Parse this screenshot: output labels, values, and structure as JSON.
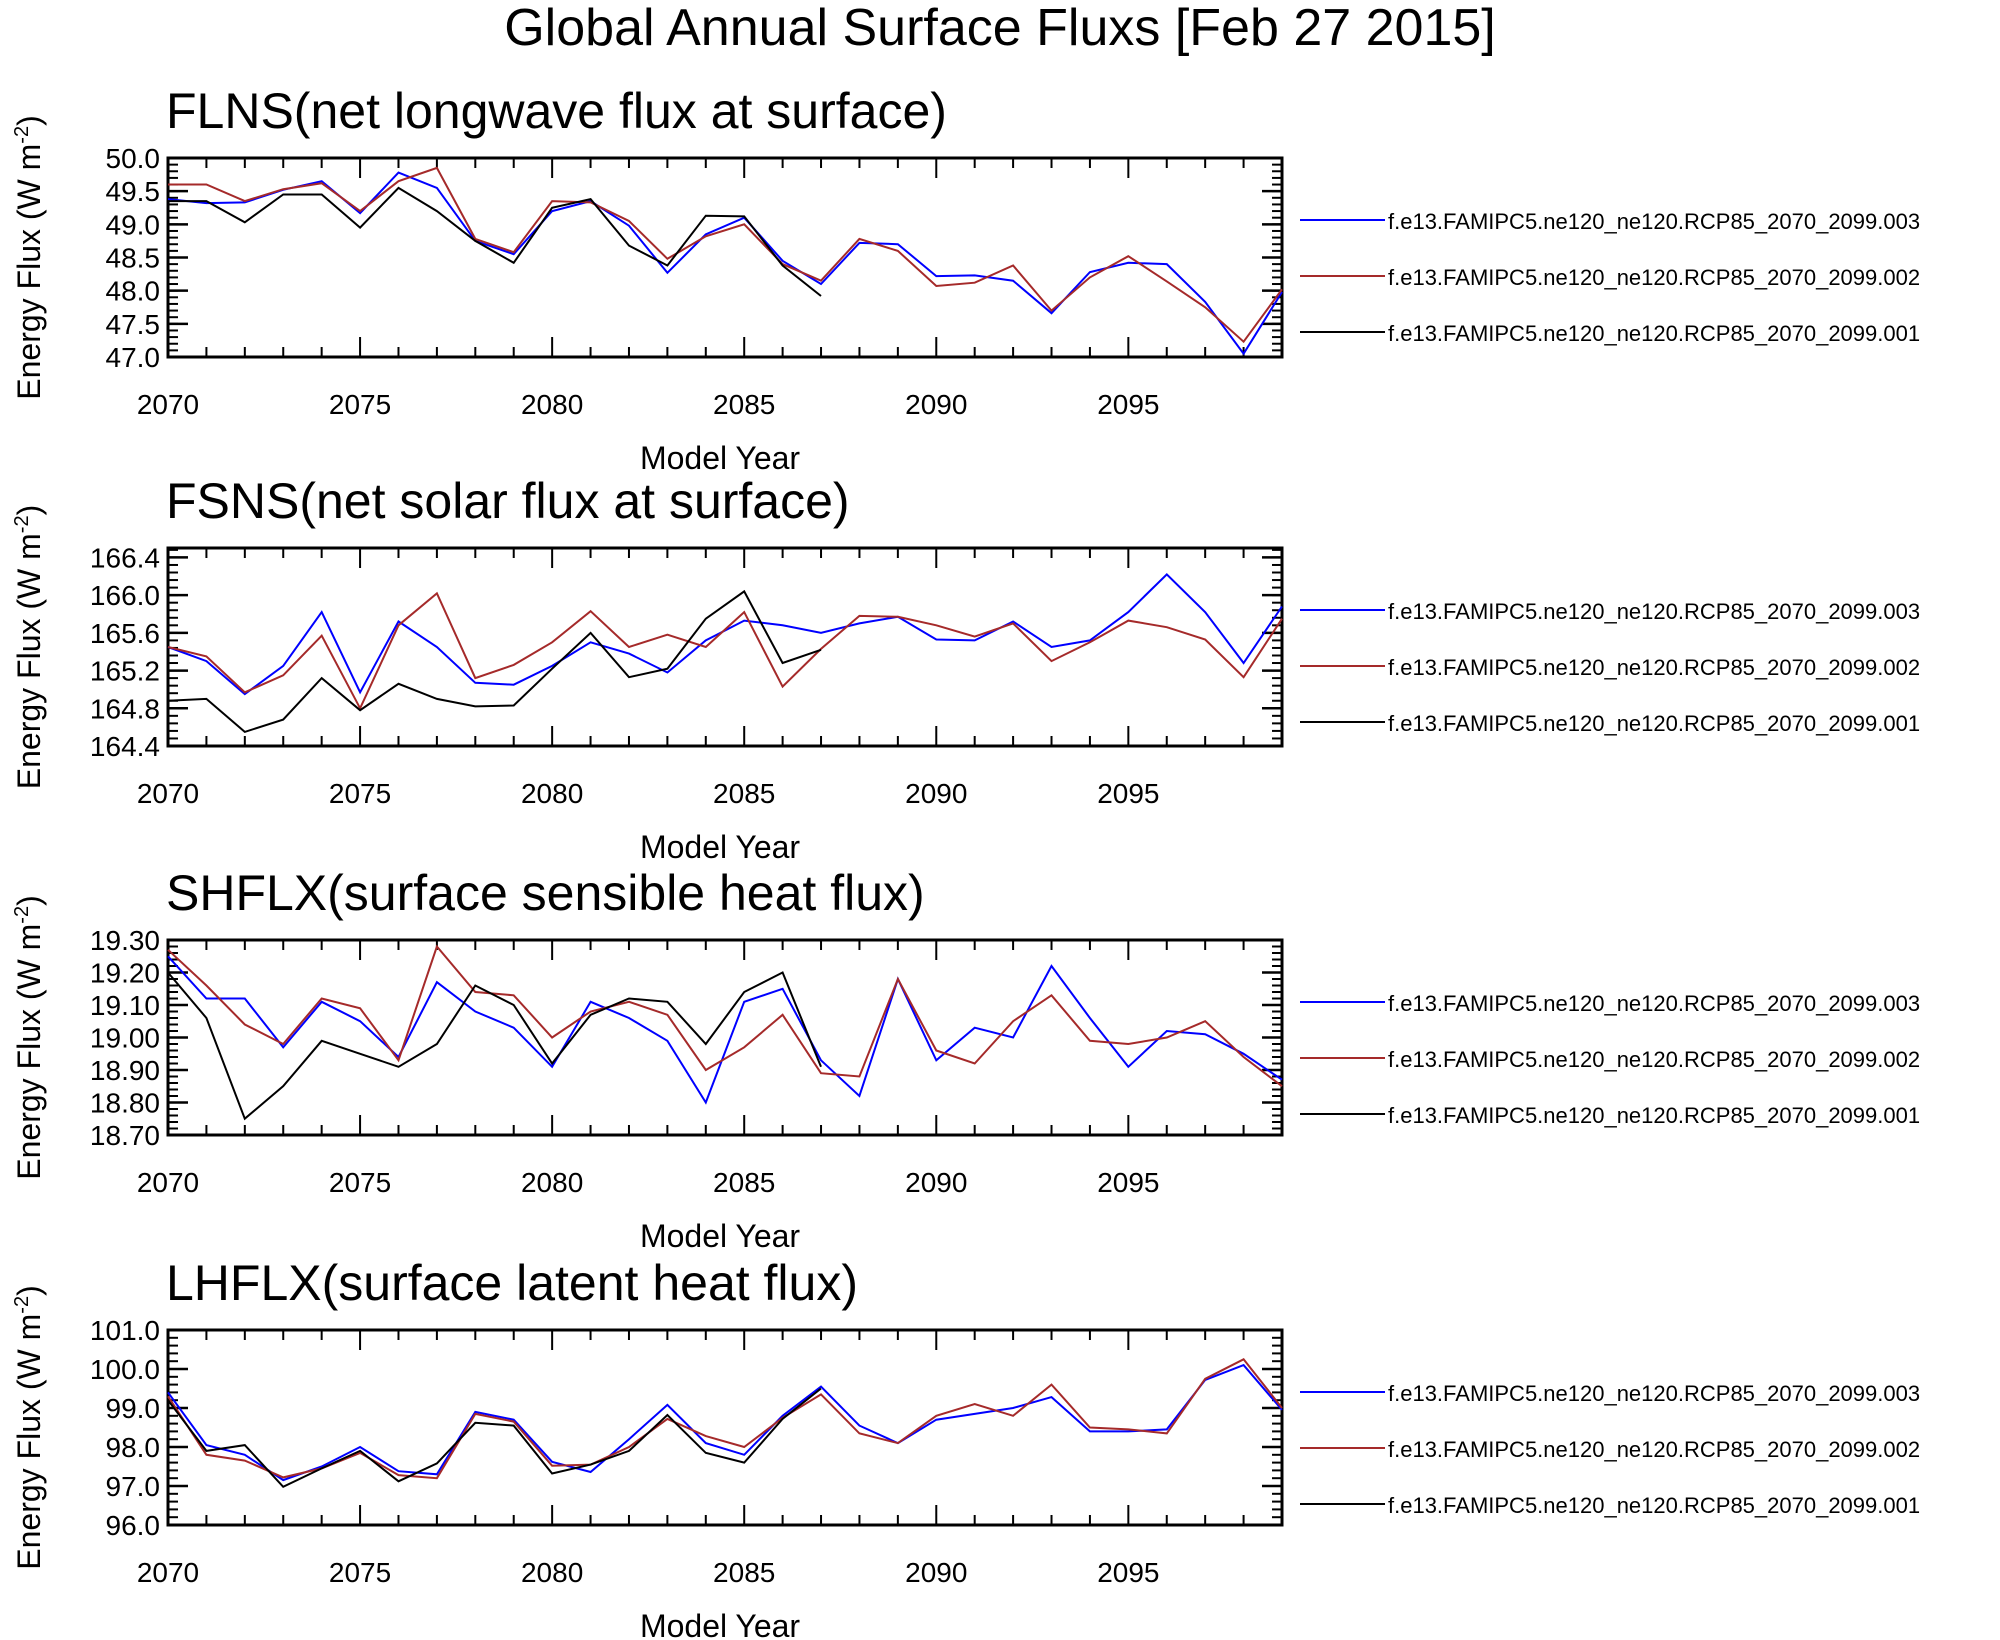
{
  "page": {
    "title": "Global Annual Surface Fluxs [Feb 27 2015]"
  },
  "chart_data": [
    {
      "type": "line",
      "title": "FLNS(net longwave flux at surface)",
      "xlabel": "Model Year",
      "ylabel": "Energy Flux (W m",
      "ylabel_sup": "-2",
      "ylabel_close": ")",
      "xlim": [
        2070,
        2099
      ],
      "ylim": [
        47.0,
        50.0
      ],
      "xticks": [
        2070,
        2075,
        2080,
        2085,
        2090,
        2095
      ],
      "yticks": [
        "47.0",
        "47.5",
        "48.0",
        "48.5",
        "49.0",
        "49.5",
        "50.0"
      ],
      "series": [
        {
          "name": "f.e13.FAMIPC5.ne120_ne120.RCP85_2070_2099.003",
          "color": "#0000ff",
          "x": [
            2070,
            2071,
            2072,
            2073,
            2074,
            2075,
            2076,
            2077,
            2078,
            2079,
            2080,
            2081,
            2082,
            2083,
            2084,
            2085,
            2086,
            2087,
            2088,
            2089,
            2090,
            2091,
            2092,
            2093,
            2094,
            2095,
            2096,
            2097,
            2098,
            2099
          ],
          "y": [
            49.38,
            49.32,
            49.33,
            49.52,
            49.65,
            49.17,
            49.78,
            49.55,
            48.75,
            48.55,
            49.2,
            49.35,
            48.98,
            48.27,
            48.85,
            49.1,
            48.45,
            48.1,
            48.72,
            48.7,
            48.22,
            48.23,
            48.15,
            47.66,
            48.28,
            48.42,
            48.4,
            47.83,
            47.05,
            47.98
          ]
        },
        {
          "name": "f.e13.FAMIPC5.ne120_ne120.RCP85_2070_2099.002",
          "color": "#a52a2a",
          "x": [
            2070,
            2071,
            2072,
            2073,
            2074,
            2075,
            2076,
            2077,
            2078,
            2079,
            2080,
            2081,
            2082,
            2083,
            2084,
            2085,
            2086,
            2087,
            2088,
            2089,
            2090,
            2091,
            2092,
            2093,
            2094,
            2095,
            2096,
            2097,
            2098,
            2099
          ],
          "y": [
            49.6,
            49.6,
            49.35,
            49.53,
            49.62,
            49.2,
            49.65,
            49.85,
            48.78,
            48.58,
            49.35,
            49.33,
            49.05,
            48.48,
            48.82,
            49.0,
            48.4,
            48.15,
            48.78,
            48.6,
            48.07,
            48.12,
            48.38,
            47.7,
            48.2,
            48.52,
            48.14,
            47.75,
            47.23,
            48.02
          ]
        },
        {
          "name": "f.e13.FAMIPC5.ne120_ne120.RCP85_2070_2099.001",
          "color": "#000000",
          "x": [
            2070,
            2071,
            2072,
            2073,
            2074,
            2075,
            2076,
            2077,
            2078,
            2079,
            2080,
            2081,
            2082,
            2083,
            2084,
            2085,
            2086,
            2087
          ],
          "y": [
            49.35,
            49.35,
            49.03,
            49.45,
            49.45,
            48.95,
            49.55,
            49.2,
            48.75,
            48.42,
            49.25,
            49.38,
            48.68,
            48.38,
            49.13,
            49.12,
            48.38,
            47.92
          ]
        }
      ]
    },
    {
      "type": "line",
      "title": "FSNS(net solar flux at surface)",
      "xlabel": "Model Year",
      "ylabel": "Energy Flux (W m",
      "ylabel_sup": "-2",
      "ylabel_close": ")",
      "xlim": [
        2070,
        2099
      ],
      "ylim": [
        164.4,
        166.5
      ],
      "xticks": [
        2070,
        2075,
        2080,
        2085,
        2090,
        2095
      ],
      "yticks": [
        "164.4",
        "164.8",
        "165.2",
        "165.6",
        "166.0",
        "166.4"
      ],
      "series": [
        {
          "name": "f.e13.FAMIPC5.ne120_ne120.RCP85_2070_2099.003",
          "color": "#0000ff",
          "x": [
            2070,
            2071,
            2072,
            2073,
            2074,
            2075,
            2076,
            2077,
            2078,
            2079,
            2080,
            2081,
            2082,
            2083,
            2084,
            2085,
            2086,
            2087,
            2088,
            2089,
            2090,
            2091,
            2092,
            2093,
            2094,
            2095,
            2096,
            2097,
            2098,
            2099
          ],
          "y": [
            165.45,
            165.3,
            164.95,
            165.25,
            165.82,
            164.97,
            165.72,
            165.45,
            165.07,
            165.05,
            165.25,
            165.5,
            165.38,
            165.18,
            165.52,
            165.73,
            165.68,
            165.6,
            165.7,
            165.77,
            165.53,
            165.52,
            165.72,
            165.45,
            165.52,
            165.82,
            166.22,
            165.82,
            165.28,
            165.88
          ]
        },
        {
          "name": "f.e13.FAMIPC5.ne120_ne120.RCP85_2070_2099.002",
          "color": "#a52a2a",
          "x": [
            2070,
            2071,
            2072,
            2073,
            2074,
            2075,
            2076,
            2077,
            2078,
            2079,
            2080,
            2081,
            2082,
            2083,
            2084,
            2085,
            2086,
            2087,
            2088,
            2089,
            2090,
            2091,
            2092,
            2093,
            2094,
            2095,
            2096,
            2097,
            2098,
            2099
          ],
          "y": [
            165.45,
            165.35,
            164.97,
            165.15,
            165.57,
            164.8,
            165.68,
            166.02,
            165.12,
            165.26,
            165.5,
            165.83,
            165.45,
            165.58,
            165.45,
            165.82,
            165.03,
            165.43,
            165.78,
            165.77,
            165.68,
            165.56,
            165.7,
            165.3,
            165.5,
            165.73,
            165.66,
            165.53,
            165.13,
            165.75
          ]
        },
        {
          "name": "f.e13.FAMIPC5.ne120_ne120.RCP85_2070_2099.001",
          "color": "#000000",
          "x": [
            2070,
            2071,
            2072,
            2073,
            2074,
            2075,
            2076,
            2077,
            2078,
            2079,
            2080,
            2081,
            2082,
            2083,
            2084,
            2085,
            2086,
            2087
          ],
          "y": [
            164.88,
            164.9,
            164.55,
            164.68,
            165.12,
            164.78,
            165.06,
            164.9,
            164.82,
            164.83,
            165.22,
            165.6,
            165.13,
            165.22,
            165.75,
            166.04,
            165.28,
            165.42
          ]
        }
      ]
    },
    {
      "type": "line",
      "title": "SHFLX(surface sensible heat flux)",
      "xlabel": "Model Year",
      "ylabel": "Energy Flux (W m",
      "ylabel_sup": "-2",
      "ylabel_close": ")",
      "xlim": [
        2070,
        2099
      ],
      "ylim": [
        18.7,
        19.3
      ],
      "xticks": [
        2070,
        2075,
        2080,
        2085,
        2090,
        2095
      ],
      "yticks": [
        "18.70",
        "18.80",
        "18.90",
        "19.00",
        "19.10",
        "19.20",
        "19.30"
      ],
      "series": [
        {
          "name": "f.e13.FAMIPC5.ne120_ne120.RCP85_2070_2099.003",
          "color": "#0000ff",
          "x": [
            2070,
            2071,
            2072,
            2073,
            2074,
            2075,
            2076,
            2077,
            2078,
            2079,
            2080,
            2081,
            2082,
            2083,
            2084,
            2085,
            2086,
            2087,
            2088,
            2089,
            2090,
            2091,
            2092,
            2093,
            2094,
            2095,
            2096,
            2097,
            2098,
            2099
          ],
          "y": [
            19.25,
            19.12,
            19.12,
            18.97,
            19.11,
            19.05,
            18.94,
            19.17,
            19.08,
            19.03,
            18.91,
            19.11,
            19.06,
            18.99,
            18.8,
            19.11,
            19.15,
            18.93,
            18.82,
            19.18,
            18.93,
            19.03,
            19.0,
            19.22,
            19.06,
            18.91,
            19.02,
            19.01,
            18.95,
            18.87
          ]
        },
        {
          "name": "f.e13.FAMIPC5.ne120_ne120.RCP85_2070_2099.002",
          "color": "#a52a2a",
          "x": [
            2070,
            2071,
            2072,
            2073,
            2074,
            2075,
            2076,
            2077,
            2078,
            2079,
            2080,
            2081,
            2082,
            2083,
            2084,
            2085,
            2086,
            2087,
            2088,
            2089,
            2090,
            2091,
            2092,
            2093,
            2094,
            2095,
            2096,
            2097,
            2098,
            2099
          ],
          "y": [
            19.27,
            19.16,
            19.04,
            18.98,
            19.12,
            19.09,
            18.93,
            19.28,
            19.14,
            19.13,
            19.0,
            19.08,
            19.11,
            19.07,
            18.9,
            18.97,
            19.07,
            18.89,
            18.88,
            19.18,
            18.96,
            18.92,
            19.05,
            19.13,
            18.99,
            18.98,
            19.0,
            19.05,
            18.94,
            18.85
          ]
        },
        {
          "name": "f.e13.FAMIPC5.ne120_ne120.RCP85_2070_2099.001",
          "color": "#000000",
          "x": [
            2070,
            2071,
            2072,
            2073,
            2074,
            2075,
            2076,
            2077,
            2078,
            2079,
            2080,
            2081,
            2082,
            2083,
            2084,
            2085,
            2086,
            2087
          ],
          "y": [
            19.2,
            19.06,
            18.75,
            18.85,
            18.99,
            18.95,
            18.91,
            18.98,
            19.16,
            19.1,
            18.92,
            19.07,
            19.12,
            19.11,
            18.98,
            19.14,
            19.2,
            18.91
          ]
        }
      ]
    },
    {
      "type": "line",
      "title": "LHFLX(surface latent heat flux)",
      "xlabel": "Model Year",
      "ylabel": "Energy Flux (W m",
      "ylabel_sup": "-2",
      "ylabel_close": ")",
      "xlim": [
        2070,
        2099
      ],
      "ylim": [
        96.0,
        101.0
      ],
      "xticks": [
        2070,
        2075,
        2080,
        2085,
        2090,
        2095
      ],
      "yticks": [
        "96.0",
        "97.0",
        "98.0",
        "99.0",
        "100.0",
        "101.0"
      ],
      "series": [
        {
          "name": "f.e13.FAMIPC5.ne120_ne120.RCP85_2070_2099.003",
          "color": "#0000ff",
          "x": [
            2070,
            2071,
            2072,
            2073,
            2074,
            2075,
            2076,
            2077,
            2078,
            2079,
            2080,
            2081,
            2082,
            2083,
            2084,
            2085,
            2086,
            2087,
            2088,
            2089,
            2090,
            2091,
            2092,
            2093,
            2094,
            2095,
            2096,
            2097,
            2098,
            2099
          ],
          "y": [
            99.4,
            98.05,
            97.8,
            97.15,
            97.5,
            98.0,
            97.38,
            97.3,
            98.9,
            98.7,
            97.62,
            97.36,
            98.2,
            99.08,
            98.1,
            97.8,
            98.8,
            99.55,
            98.55,
            98.1,
            98.7,
            98.85,
            99.0,
            99.28,
            98.4,
            98.4,
            98.45,
            99.72,
            100.1,
            98.95
          ]
        },
        {
          "name": "f.e13.FAMIPC5.ne120_ne120.RCP85_2070_2099.002",
          "color": "#a52a2a",
          "x": [
            2070,
            2071,
            2072,
            2073,
            2074,
            2075,
            2076,
            2077,
            2078,
            2079,
            2080,
            2081,
            2082,
            2083,
            2084,
            2085,
            2086,
            2087,
            2088,
            2089,
            2090,
            2091,
            2092,
            2093,
            2094,
            2095,
            2096,
            2097,
            2098,
            2099
          ],
          "y": [
            99.3,
            97.8,
            97.65,
            97.22,
            97.45,
            97.85,
            97.28,
            97.2,
            98.85,
            98.65,
            97.52,
            97.55,
            98.0,
            98.72,
            98.28,
            98.0,
            98.75,
            99.35,
            98.35,
            98.1,
            98.8,
            99.1,
            98.8,
            99.6,
            98.5,
            98.45,
            98.35,
            99.75,
            100.25,
            99.0
          ]
        },
        {
          "name": "f.e13.FAMIPC5.ne120_ne120.RCP85_2070_2099.001",
          "color": "#000000",
          "x": [
            2070,
            2071,
            2072,
            2073,
            2074,
            2075,
            2076,
            2077,
            2078,
            2079,
            2080,
            2081,
            2082,
            2083,
            2084,
            2085,
            2086,
            2087
          ],
          "y": [
            99.2,
            97.9,
            98.05,
            96.98,
            97.45,
            97.9,
            97.12,
            97.58,
            98.62,
            98.55,
            97.32,
            97.55,
            97.9,
            98.82,
            97.85,
            97.6,
            98.72,
            99.5
          ]
        }
      ]
    }
  ]
}
